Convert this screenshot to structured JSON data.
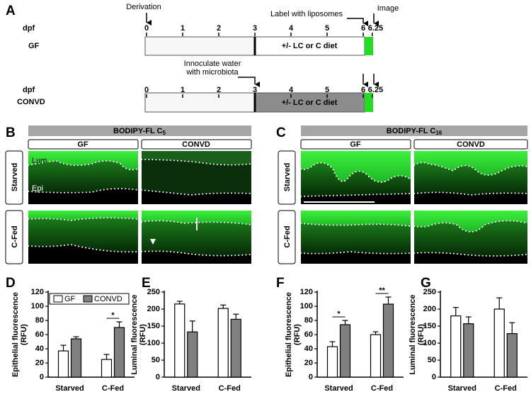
{
  "panel_a": {
    "label": "A",
    "timelines": [
      {
        "axis_label": "dpf",
        "row_label": "GF",
        "ticks": [
          0,
          1,
          2,
          3,
          4,
          5,
          6,
          6.25
        ],
        "treatment": "+/- LC or C diet"
      },
      {
        "axis_label": "dpf",
        "row_label": "CONVD",
        "ticks": [
          0,
          1,
          2,
          3,
          4,
          5,
          6,
          6.25
        ],
        "treatment": "+/- LC or C diet"
      }
    ],
    "derivation": "Derivation",
    "label_step": "Label with liposomes",
    "image_step": "Image",
    "inoculate": [
      "Innoculate water",
      "with microbiota"
    ]
  },
  "panel_b": {
    "label": "B",
    "title": "BODIPY-FL C",
    "title_sub": "5",
    "columns": [
      "GF",
      "CONVD"
    ],
    "rows": [
      "Starved",
      "C-Fed"
    ],
    "lumen_label": "Lum",
    "epithelium_label": "Epi"
  },
  "panel_c": {
    "label": "C",
    "title": "BODIPY-FL C",
    "title_sub": "16",
    "columns": [
      "GF",
      "CONVD"
    ],
    "rows": [
      "Starved",
      "C-Fed"
    ]
  },
  "chart_data": [
    {
      "type": "bar",
      "panel": "D",
      "ylabel": [
        "Epithelial fluorescence",
        "(RFU)"
      ],
      "categories": [
        "Starved",
        "C-Fed"
      ],
      "series": [
        {
          "name": "GF",
          "color": "#ffffff",
          "values": [
            37,
            25
          ],
          "errors": [
            8,
            7
          ]
        },
        {
          "name": "CONVD",
          "color": "#808080",
          "values": [
            54,
            70
          ],
          "errors": [
            3,
            8
          ]
        }
      ],
      "significance": [
        null,
        "*"
      ],
      "legend": true,
      "ylim": [
        0,
        120
      ],
      "yticks": [
        0,
        20,
        40,
        60,
        80,
        100,
        120
      ]
    },
    {
      "type": "bar",
      "panel": "E",
      "ylabel": [
        "Luminal fluorescence",
        "(RFU)"
      ],
      "categories": [
        "Starved",
        "C-Fed"
      ],
      "series": [
        {
          "color": "#ffffff",
          "values": [
            215,
            202
          ],
          "errors": [
            8,
            10
          ]
        },
        {
          "color": "#808080",
          "values": [
            133,
            170
          ],
          "errors": [
            32,
            15
          ]
        }
      ],
      "ylim": [
        0,
        250
      ],
      "yticks": [
        0,
        50,
        100,
        150,
        200,
        250
      ]
    },
    {
      "type": "bar",
      "panel": "F",
      "ylabel": [
        "Epithelial fluorescence",
        "(RFU)"
      ],
      "categories": [
        "Starved",
        "C-Fed"
      ],
      "series": [
        {
          "color": "#ffffff",
          "values": [
            43,
            60
          ],
          "errors": [
            7,
            4
          ]
        },
        {
          "color": "#808080",
          "values": [
            74,
            103
          ],
          "errors": [
            6,
            10
          ]
        }
      ],
      "significance": [
        "*",
        "**"
      ],
      "ylim": [
        0,
        120
      ],
      "yticks": [
        0,
        20,
        40,
        60,
        80,
        100,
        120
      ]
    },
    {
      "type": "bar",
      "panel": "G",
      "ylabel": [
        "Luminal fluorescence",
        "(RFU)"
      ],
      "categories": [
        "Starved",
        "C-Fed"
      ],
      "series": [
        {
          "color": "#ffffff",
          "values": [
            180,
            200
          ],
          "errors": [
            25,
            33
          ]
        },
        {
          "color": "#808080",
          "values": [
            157,
            128
          ],
          "errors": [
            20,
            32
          ]
        }
      ],
      "ylim": [
        0,
        250
      ],
      "yticks": [
        0,
        50,
        100,
        150,
        200,
        250
      ]
    }
  ]
}
